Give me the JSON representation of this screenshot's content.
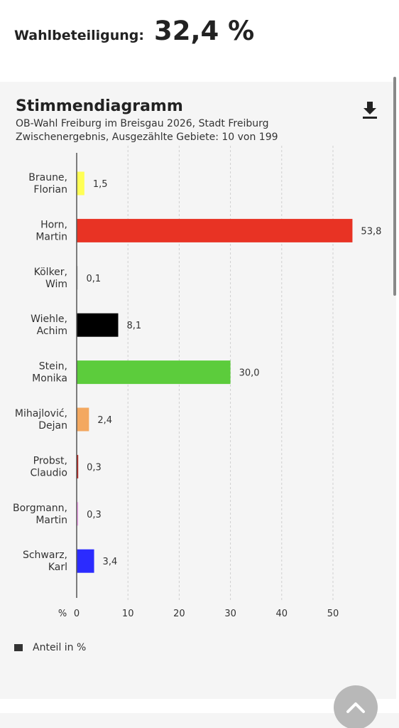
{
  "turnout": {
    "label": "Wahlbeteiligung:",
    "value": "32,4 %"
  },
  "card": {
    "title": "Stimmendiagramm",
    "subtitle1": "OB-Wahl Freiburg im Breisgau 2026, Stadt Freiburg",
    "subtitle2": "Zwischenergebnis, Ausgezählte Gebiete: 10 von 199",
    "download_icon": "download-icon"
  },
  "chart_data": {
    "type": "bar",
    "orientation": "horizontal",
    "categories": [
      [
        "Braune,",
        "Florian"
      ],
      [
        "Horn,",
        "Martin"
      ],
      [
        "Kölker,",
        "Wim"
      ],
      [
        "Wiehle,",
        "Achim"
      ],
      [
        "Stein,",
        "Monika"
      ],
      [
        "Mihajlović,",
        "Dejan"
      ],
      [
        "Probst,",
        "Claudio"
      ],
      [
        "Borgmann,",
        "Martin"
      ],
      [
        "Schwarz,",
        "Karl"
      ]
    ],
    "values": [
      1.5,
      53.8,
      0.1,
      8.1,
      30.0,
      2.4,
      0.3,
      0.3,
      3.4
    ],
    "value_labels": [
      "1,5",
      "53,8",
      "0,1",
      "8,1",
      "30,0",
      "2,4",
      "0,3",
      "0,3",
      "3,4"
    ],
    "colors": [
      "#ffff55",
      "#e83324",
      "#cccccc",
      "#000000",
      "#5ccc3c",
      "#f3a860",
      "#b8201c",
      "#f5a8f0",
      "#2b2bff"
    ],
    "xlim": [
      0,
      55
    ],
    "xticks": [
      0,
      10,
      20,
      30,
      40,
      50
    ],
    "xtick_labels": [
      "0",
      "10",
      "20",
      "30",
      "40",
      "50"
    ],
    "xunit_label": "%",
    "grid": true,
    "legend": {
      "label": "Anteil in %",
      "color": "#333333",
      "placement": "bottom-left"
    }
  },
  "scroll_top_icon": "chevron-up-icon"
}
